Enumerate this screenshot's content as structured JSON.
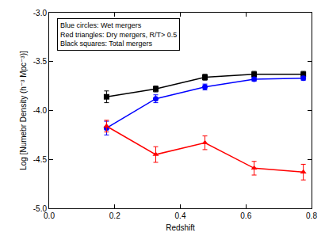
{
  "chart_data": {
    "type": "line",
    "x_label": "Redshift",
    "y_label": "Log [Numebr Density (h⁻³ Mpc⁻³)]",
    "annotations": [
      "Blue circles: Wet mergers",
      "Red triangles: Dry mergers, R/T> 0.5",
      "Black squares: Total mergers"
    ],
    "xlim": [
      0.0,
      0.8
    ],
    "xticks": [
      {
        "value": 0,
        "label": "0.0"
      },
      0.2,
      0.4,
      0.6,
      0.8
    ],
    "ylim": [
      -5.0,
      -3.0
    ],
    "yticks": [
      {
        "value": -5,
        "label": "-5.0"
      },
      -4.5,
      {
        "value": -4,
        "label": "-4.0"
      },
      -3.5,
      {
        "value": -3,
        "label": "-3.0"
      }
    ],
    "grid": false,
    "series": [
      {
        "color": "#000000",
        "marker": "square",
        "x": [
          0.175,
          0.325,
          0.475,
          0.625,
          0.775
        ],
        "values": [
          -3.86,
          -3.78,
          -3.66,
          -3.63,
          -3.63
        ],
        "error": [
          0.06,
          0.03,
          0.03,
          0.03,
          0.03
        ]
      },
      {
        "color": "#0000ff",
        "marker": "circle",
        "x": [
          0.175,
          0.325,
          0.475,
          0.625,
          0.775
        ],
        "values": [
          -4.18,
          -3.88,
          -3.76,
          -3.68,
          -3.67
        ],
        "error": [
          0.07,
          0.04,
          0.03,
          0.02,
          0.02
        ]
      },
      {
        "color": "#ff0000",
        "marker": "triangle-up",
        "x": [
          0.175,
          0.325,
          0.475,
          0.625,
          0.775
        ],
        "values": [
          -4.16,
          -4.45,
          -4.33,
          -4.59,
          -4.63
        ],
        "error": [
          0.06,
          0.08,
          0.07,
          0.07,
          0.08
        ]
      }
    ]
  }
}
